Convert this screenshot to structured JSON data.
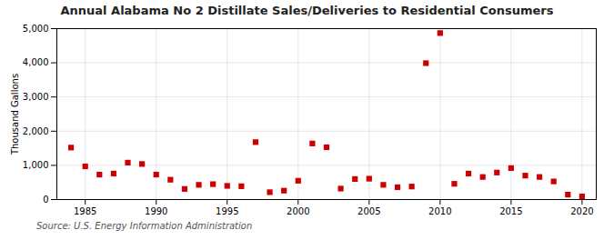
{
  "chart_data": {
    "type": "scatter",
    "title": "Annual Alabama No 2 Distillate Sales/Deliveries to Residential Consumers",
    "ylabel": "Thousand Gallons",
    "annotations": [
      "Source: U.S. Energy Information Administration"
    ],
    "x": [
      1984,
      1985,
      1986,
      1987,
      1988,
      1989,
      1990,
      1991,
      1992,
      1993,
      1994,
      1995,
      1996,
      1997,
      1998,
      1999,
      2000,
      2001,
      2002,
      2003,
      2004,
      2005,
      2006,
      2007,
      2008,
      2009,
      2010,
      2011,
      2012,
      2013,
      2014,
      2015,
      2016,
      2017,
      2018,
      2019,
      2020
    ],
    "values": [
      1520,
      970,
      730,
      760,
      1080,
      1040,
      730,
      580,
      310,
      430,
      450,
      400,
      390,
      1680,
      215,
      260,
      550,
      1640,
      1530,
      320,
      600,
      610,
      430,
      360,
      380,
      3990,
      4870,
      460,
      760,
      660,
      790,
      920,
      700,
      660,
      530,
      145,
      90
    ],
    "color": "#cc0000",
    "marker": "square",
    "xlim": [
      1983,
      2021
    ],
    "xticks": [
      1985,
      1990,
      1995,
      2000,
      2005,
      2010,
      2015,
      2020
    ],
    "ylim": [
      0,
      5000
    ],
    "yticks": [
      0,
      {
        "value": 1000,
        "label": "1,000"
      },
      {
        "value": 2000,
        "label": "2,000"
      },
      {
        "value": 3000,
        "label": "3,000"
      },
      {
        "value": 4000,
        "label": "4,000"
      },
      {
        "value": 5000,
        "label": "5,000"
      }
    ],
    "grid": true
  }
}
